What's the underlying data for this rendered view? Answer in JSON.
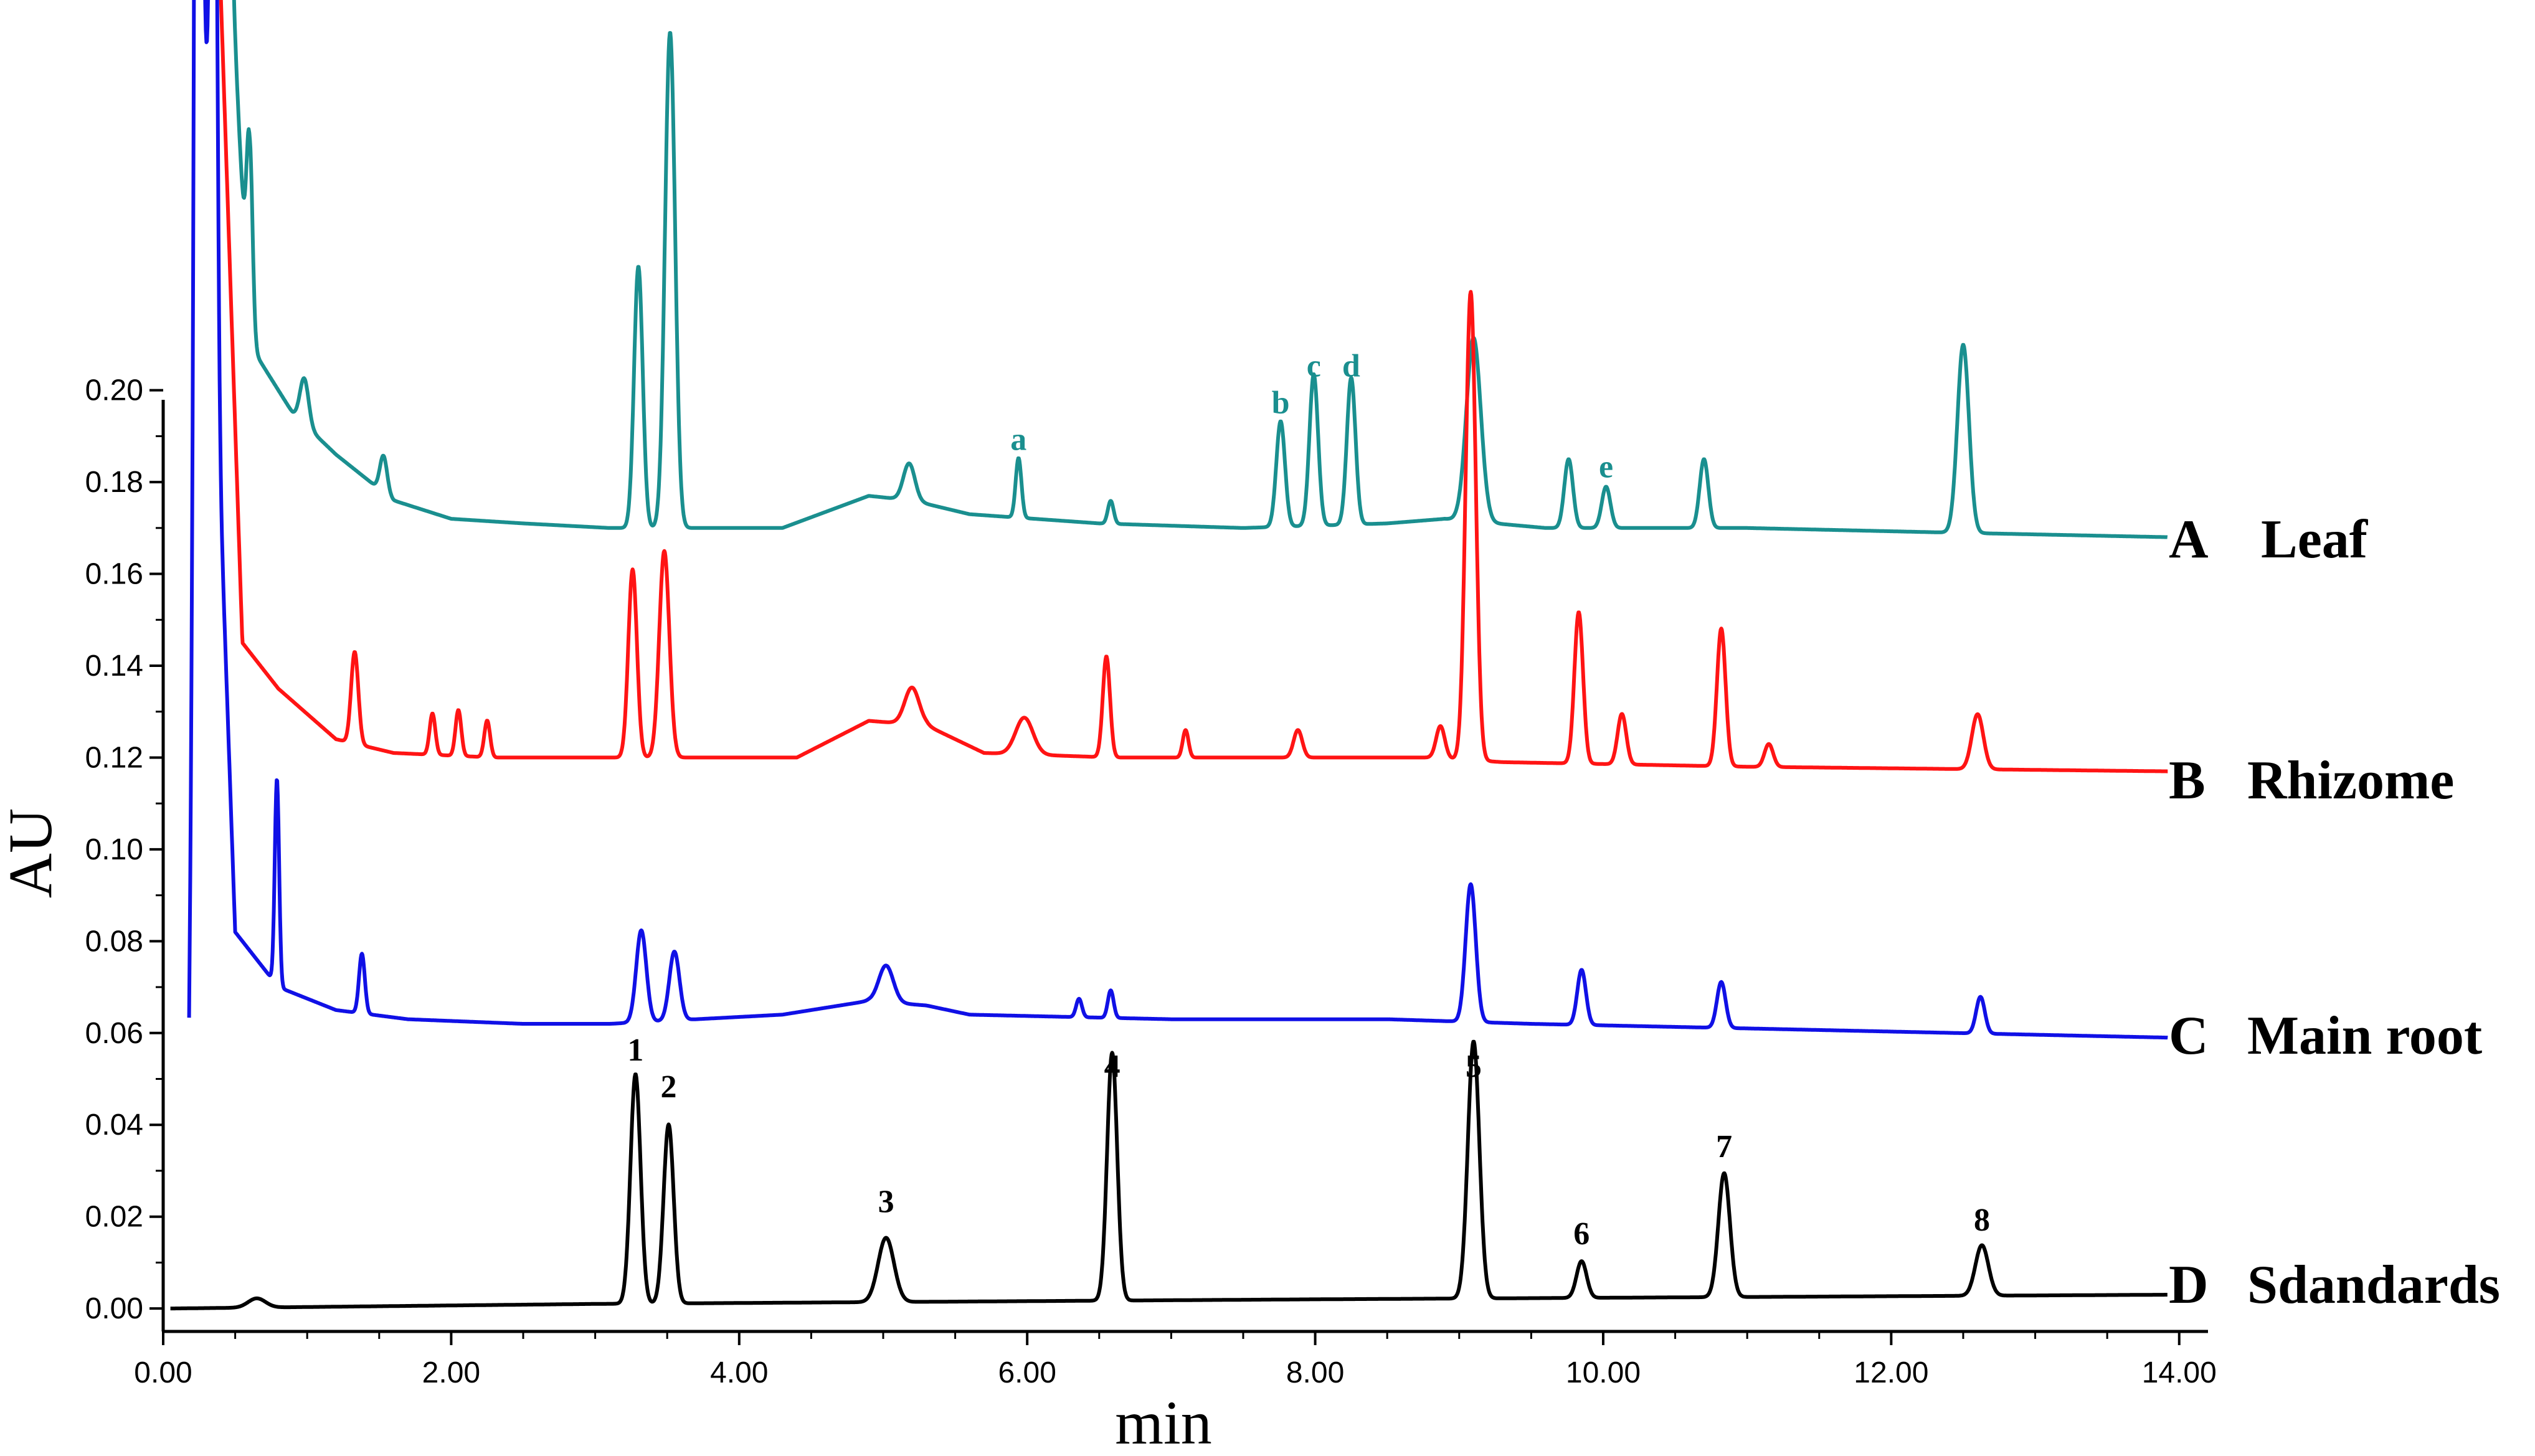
{
  "chart_data": {
    "type": "line",
    "xlabel": "min",
    "ylabel": "AU",
    "xlim": [
      0,
      14.2
    ],
    "ylim": [
      -0.005,
      0.285
    ],
    "x_ticks": [
      "0.00",
      "2.00",
      "4.00",
      "6.00",
      "8.00",
      "10.00",
      "12.00",
      "14.00"
    ],
    "y_ticks": [
      "0.00",
      "0.02",
      "0.04",
      "0.06",
      "0.08",
      "0.10",
      "0.12",
      "0.14",
      "0.16",
      "0.18",
      "0.20"
    ],
    "series": [
      {
        "letter": "A",
        "name": "Leaf",
        "color": "#1a8f8f",
        "start_x": 0.15,
        "end_x": 13.92,
        "baseline": [
          [
            0.15,
            0.5
          ],
          [
            0.6,
            0.21
          ],
          [
            0.9,
            0.195
          ],
          [
            1.2,
            0.186
          ],
          [
            1.6,
            0.176
          ],
          [
            2.0,
            0.172
          ],
          [
            2.5,
            0.171
          ],
          [
            3.1,
            0.17
          ],
          [
            4.3,
            0.17
          ],
          [
            4.9,
            0.177
          ],
          [
            5.2,
            0.176
          ],
          [
            5.6,
            0.173
          ],
          [
            6.5,
            0.171
          ],
          [
            7.5,
            0.17
          ],
          [
            8.5,
            0.171
          ],
          [
            8.9,
            0.172
          ],
          [
            9.6,
            0.17
          ],
          [
            11.0,
            0.17
          ],
          [
            12.4,
            0.169
          ],
          [
            13.92,
            0.168
          ]
        ],
        "peaks": [
          [
            0.22,
            0.6,
            0.02
          ],
          [
            0.42,
            0.1,
            0.03
          ],
          [
            0.6,
            0.045,
            0.02
          ],
          [
            0.98,
            0.01,
            0.03
          ],
          [
            1.53,
            0.008,
            0.025
          ],
          [
            3.3,
            0.057,
            0.03
          ],
          [
            3.52,
            0.108,
            0.035
          ],
          [
            5.18,
            0.008,
            0.04
          ],
          [
            5.94,
            0.013,
            0.02
          ],
          [
            6.58,
            0.005,
            0.02
          ],
          [
            7.76,
            0.023,
            0.03
          ],
          [
            7.99,
            0.033,
            0.03
          ],
          [
            8.25,
            0.032,
            0.03
          ],
          [
            9.1,
            0.04,
            0.05
          ],
          [
            9.76,
            0.015,
            0.03
          ],
          [
            10.02,
            0.009,
            0.03
          ],
          [
            10.7,
            0.015,
            0.03
          ],
          [
            12.5,
            0.041,
            0.04
          ]
        ]
      },
      {
        "letter": "B",
        "name": "Rhizome",
        "color": "#ff1414",
        "start_x": 0.12,
        "end_x": 13.92,
        "baseline": [
          [
            0.12,
            0.55
          ],
          [
            0.55,
            0.145
          ],
          [
            0.8,
            0.135
          ],
          [
            1.2,
            0.124
          ],
          [
            1.6,
            0.121
          ],
          [
            2.3,
            0.12
          ],
          [
            3.1,
            0.12
          ],
          [
            4.4,
            0.12
          ],
          [
            4.9,
            0.128
          ],
          [
            5.3,
            0.127
          ],
          [
            5.7,
            0.121
          ],
          [
            6.6,
            0.12
          ],
          [
            8.8,
            0.12
          ],
          [
            9.3,
            0.119
          ],
          [
            11.0,
            0.118
          ],
          [
            13.92,
            0.117
          ]
        ],
        "peaks": [
          [
            0.3,
            0.6,
            0.02
          ],
          [
            1.33,
            0.02,
            0.025
          ],
          [
            1.87,
            0.009,
            0.02
          ],
          [
            2.05,
            0.01,
            0.02
          ],
          [
            2.25,
            0.008,
            0.02
          ],
          [
            3.26,
            0.041,
            0.03
          ],
          [
            3.48,
            0.045,
            0.035
          ],
          [
            5.2,
            0.008,
            0.05
          ],
          [
            5.98,
            0.008,
            0.06
          ],
          [
            6.55,
            0.022,
            0.025
          ],
          [
            7.1,
            0.006,
            0.02
          ],
          [
            7.88,
            0.006,
            0.03
          ],
          [
            8.87,
            0.007,
            0.03
          ],
          [
            9.08,
            0.102,
            0.035
          ],
          [
            9.83,
            0.033,
            0.03
          ],
          [
            10.13,
            0.011,
            0.03
          ],
          [
            10.82,
            0.03,
            0.03
          ],
          [
            11.15,
            0.005,
            0.03
          ],
          [
            12.6,
            0.012,
            0.04
          ]
        ]
      },
      {
        "letter": "C",
        "name": "Main root",
        "color": "#1010e6",
        "start_x": 0.18,
        "end_x": 13.92,
        "baseline": [
          [
            0.18,
            0.06
          ],
          [
            0.26,
            0.3
          ],
          [
            0.5,
            0.082
          ],
          [
            0.8,
            0.07
          ],
          [
            1.2,
            0.065
          ],
          [
            1.7,
            0.063
          ],
          [
            2.5,
            0.062
          ],
          [
            3.1,
            0.062
          ],
          [
            4.3,
            0.064
          ],
          [
            4.9,
            0.067
          ],
          [
            5.3,
            0.066
          ],
          [
            5.6,
            0.064
          ],
          [
            7.0,
            0.063
          ],
          [
            8.5,
            0.063
          ],
          [
            9.5,
            0.062
          ],
          [
            11.0,
            0.061
          ],
          [
            13.92,
            0.059
          ]
        ],
        "peaks": [
          [
            0.24,
            0.3,
            0.02
          ],
          [
            0.35,
            0.2,
            0.02
          ],
          [
            0.79,
            0.045,
            0.015
          ],
          [
            1.38,
            0.013,
            0.02
          ],
          [
            3.32,
            0.02,
            0.035
          ],
          [
            3.55,
            0.015,
            0.035
          ],
          [
            5.02,
            0.008,
            0.05
          ],
          [
            6.36,
            0.004,
            0.02
          ],
          [
            6.58,
            0.006,
            0.02
          ],
          [
            9.08,
            0.03,
            0.035
          ],
          [
            9.85,
            0.012,
            0.03
          ],
          [
            10.82,
            0.01,
            0.03
          ],
          [
            12.62,
            0.008,
            0.03
          ]
        ]
      },
      {
        "letter": "D",
        "name": "Sdandards",
        "color": "#000000",
        "start_x": 0.05,
        "end_x": 13.92,
        "baseline": [
          [
            0.05,
            0.0
          ],
          [
            3.0,
            0.001
          ],
          [
            8.0,
            0.002
          ],
          [
            13.92,
            0.003
          ]
        ],
        "peaks": [
          [
            0.65,
            0.002,
            0.06
          ],
          [
            3.28,
            0.05,
            0.035
          ],
          [
            3.51,
            0.039,
            0.035
          ],
          [
            5.02,
            0.014,
            0.055
          ],
          [
            6.59,
            0.054,
            0.035
          ],
          [
            9.1,
            0.056,
            0.04
          ],
          [
            9.85,
            0.008,
            0.035
          ],
          [
            10.84,
            0.027,
            0.04
          ],
          [
            12.63,
            0.011,
            0.045
          ]
        ]
      }
    ],
    "annotations": [
      {
        "text": "a",
        "x": 5.94,
        "y": 0.187,
        "color": "#1a8f8f"
      },
      {
        "text": "b",
        "x": 7.76,
        "y": 0.195,
        "color": "#1a8f8f"
      },
      {
        "text": "c",
        "x": 7.99,
        "y": 0.203,
        "color": "#1a8f8f"
      },
      {
        "text": "d",
        "x": 8.25,
        "y": 0.203,
        "color": "#1a8f8f"
      },
      {
        "text": "e",
        "x": 10.02,
        "y": 0.181,
        "color": "#1a8f8f"
      },
      {
        "text": "1",
        "x": 3.28,
        "y": 0.054,
        "color": "#000000"
      },
      {
        "text": "2",
        "x": 3.51,
        "y": 0.046,
        "color": "#000000"
      },
      {
        "text": "3",
        "x": 5.02,
        "y": 0.021,
        "color": "#000000"
      },
      {
        "text": "4",
        "x": 6.59,
        "y": 0.0505,
        "color": "#000000"
      },
      {
        "text": "5",
        "x": 9.1,
        "y": 0.0505,
        "color": "#000000"
      },
      {
        "text": "6",
        "x": 9.85,
        "y": 0.014,
        "color": "#000000"
      },
      {
        "text": "7",
        "x": 10.84,
        "y": 0.033,
        "color": "#000000"
      },
      {
        "text": "8",
        "x": 12.63,
        "y": 0.017,
        "color": "#000000"
      }
    ]
  }
}
